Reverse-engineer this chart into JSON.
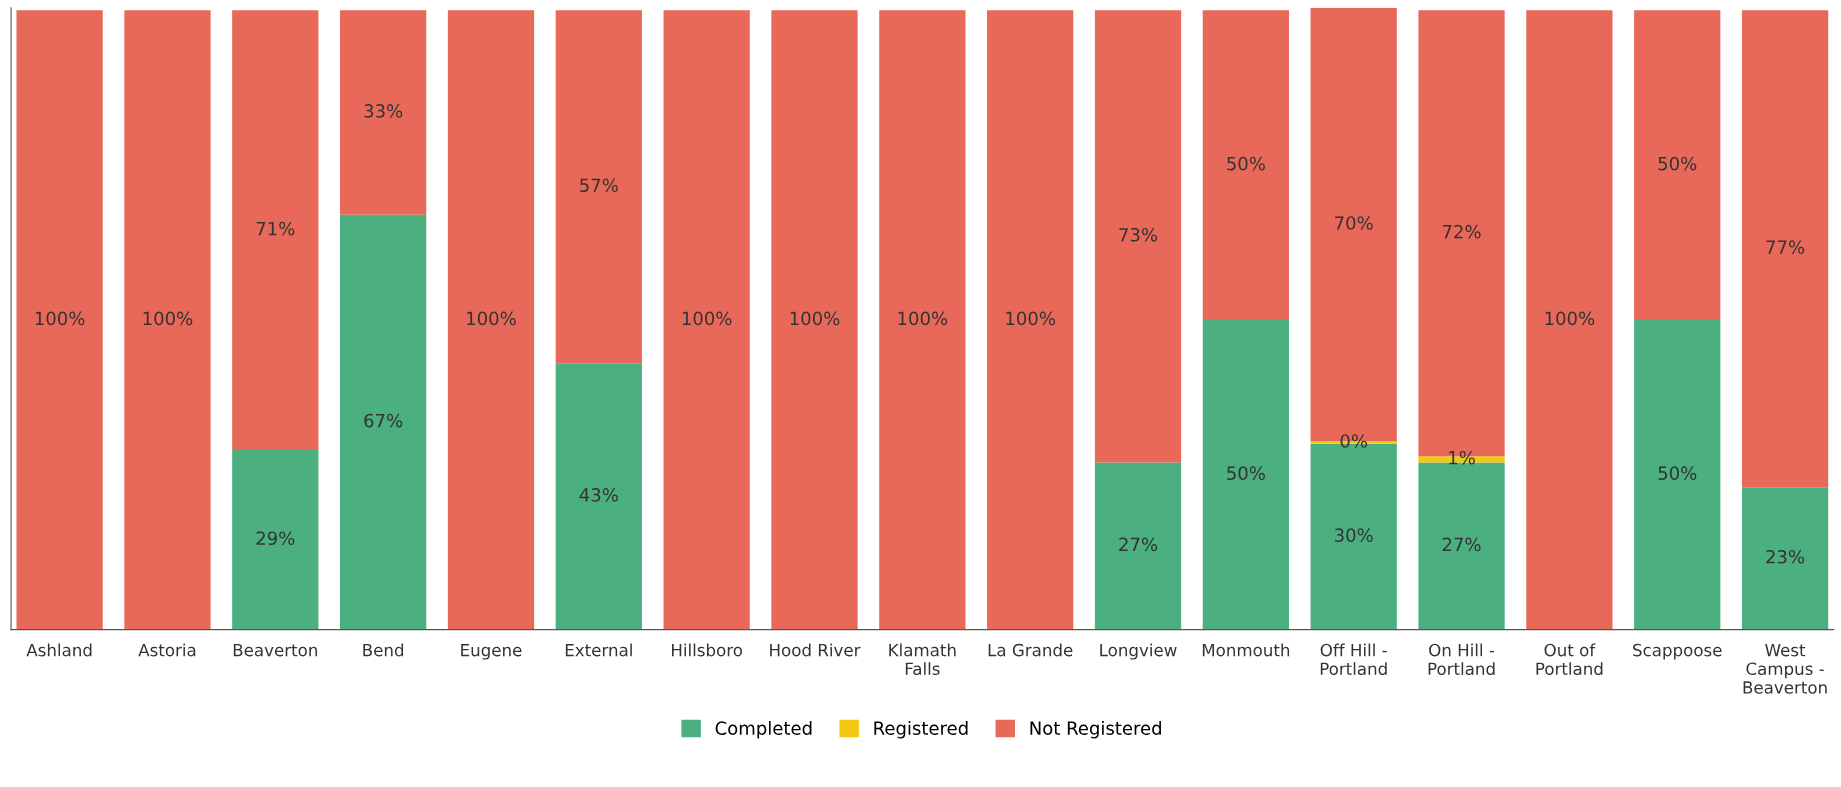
{
  "chart_data": {
    "type": "bar",
    "stacked": true,
    "legend": "bottom",
    "grid": false,
    "tick_labels": "x",
    "categories": [
      "Ashland",
      "Astoria",
      "Beaverton",
      "Bend",
      "Eugene",
      "External",
      "Hillsboro",
      "Hood River",
      "Klamath\nFalls",
      "La Grande",
      "Longview",
      "Monmouth",
      "Off Hill -\nPortland",
      "On Hill -\nPortland",
      "Out of\nPortland",
      "Scappoose",
      "West\nCampus -\nBeaverton"
    ],
    "series": [
      {
        "name": "Completed",
        "color": "#4caf80",
        "values": [
          0,
          0,
          29,
          67,
          0,
          43,
          0,
          0,
          0,
          0,
          27,
          50,
          30,
          27,
          0,
          50,
          23
        ],
        "value_labels": [
          null,
          null,
          "29%",
          "67%",
          null,
          "43%",
          null,
          null,
          null,
          null,
          "27%",
          "50%",
          "30%",
          "27%",
          null,
          "50%",
          "23%"
        ]
      },
      {
        "name": "Registered",
        "color": "#f2c811",
        "values": [
          0,
          0,
          0,
          0,
          0,
          0,
          0,
          0,
          0,
          0,
          0,
          0,
          0.4,
          1,
          0,
          0,
          0
        ],
        "value_labels": [
          null,
          null,
          null,
          null,
          null,
          null,
          null,
          null,
          null,
          null,
          null,
          null,
          "0%",
          "1%",
          null,
          null,
          null
        ]
      },
      {
        "name": "Not Registered",
        "color": "#e8695a",
        "values": [
          100,
          100,
          71,
          33,
          100,
          57,
          100,
          100,
          100,
          100,
          73,
          50,
          70,
          72,
          100,
          50,
          77
        ],
        "value_labels": [
          "100%",
          "100%",
          "71%",
          "33%",
          "100%",
          "57%",
          "100%",
          "100%",
          "100%",
          "100%",
          "73%",
          "50%",
          "70%",
          "72%",
          "100%",
          "50%",
          "77%"
        ]
      }
    ]
  }
}
